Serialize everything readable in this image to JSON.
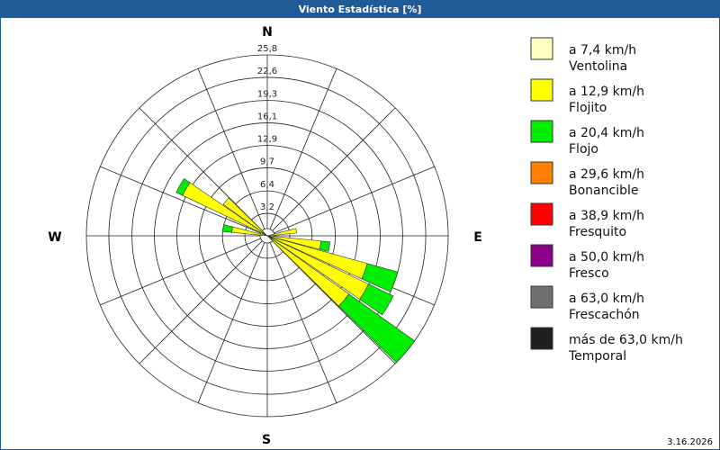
{
  "chart_data": {
    "type": "windrose",
    "title": "Viento Estadística [%]",
    "date": "3.16.2026",
    "compass": {
      "N": "N",
      "E": "E",
      "S": "S",
      "W": "W"
    },
    "directions": [
      80,
      100,
      110,
      120,
      130,
      280,
      300,
      310
    ],
    "rlim": [
      0,
      25.8
    ],
    "rticks": [
      {
        "value": 3.2,
        "label": "3,2"
      },
      {
        "value": 6.4,
        "label": "6,4"
      },
      {
        "value": 9.7,
        "label": "9,7"
      },
      {
        "value": 12.9,
        "label": "12,9"
      },
      {
        "value": 16.1,
        "label": "16,1"
      },
      {
        "value": 19.3,
        "label": "19,3"
      },
      {
        "value": 22.6,
        "label": "22,6"
      },
      {
        "value": 25.8,
        "label": "25,8"
      }
    ],
    "series": [
      {
        "name": "Ventolina",
        "range": "a 7,4 km/h",
        "color": "#ffffc0",
        "values": [
          0.8,
          0.8,
          0.8,
          0.8,
          0.8,
          0.8,
          0.8,
          0.8
        ]
      },
      {
        "name": "Flojito",
        "range": "a 12,9 km/h",
        "color": "#ffff00",
        "values": [
          3.4,
          6.9,
          14.0,
          15.2,
          13.5,
          4.3,
          12.6,
          6.9
        ]
      },
      {
        "name": "Flojo",
        "range": "a 20,4 km/h",
        "color": "#00ee00",
        "values": [
          0,
          1.3,
          4.5,
          3.9,
          11.5,
          1.3,
          1.0,
          0
        ]
      },
      {
        "name": "Bonancible",
        "range": "a 29,6 km/h",
        "color": "#ff8000",
        "values": [
          0,
          0,
          0,
          0,
          0,
          0,
          0,
          0
        ]
      },
      {
        "name": "Fresquito",
        "range": "a 38,9 km/h",
        "color": "#ff0000",
        "values": [
          0,
          0,
          0,
          0,
          0,
          0,
          0,
          0
        ]
      },
      {
        "name": "Fresco",
        "range": "a 50,0 km/h",
        "color": "#8b008b",
        "values": [
          0,
          0,
          0,
          0,
          0,
          0,
          0,
          0
        ]
      },
      {
        "name": "Frescachón",
        "range": "a 63,0 km/h",
        "color": "#707070",
        "values": [
          0,
          0,
          0,
          0,
          0,
          0,
          0,
          0
        ]
      },
      {
        "name": "Temporal",
        "range": "más de 63,0 km/h",
        "color": "#202020",
        "values": [
          0,
          0,
          0,
          0,
          0,
          0,
          0,
          0
        ]
      }
    ]
  }
}
